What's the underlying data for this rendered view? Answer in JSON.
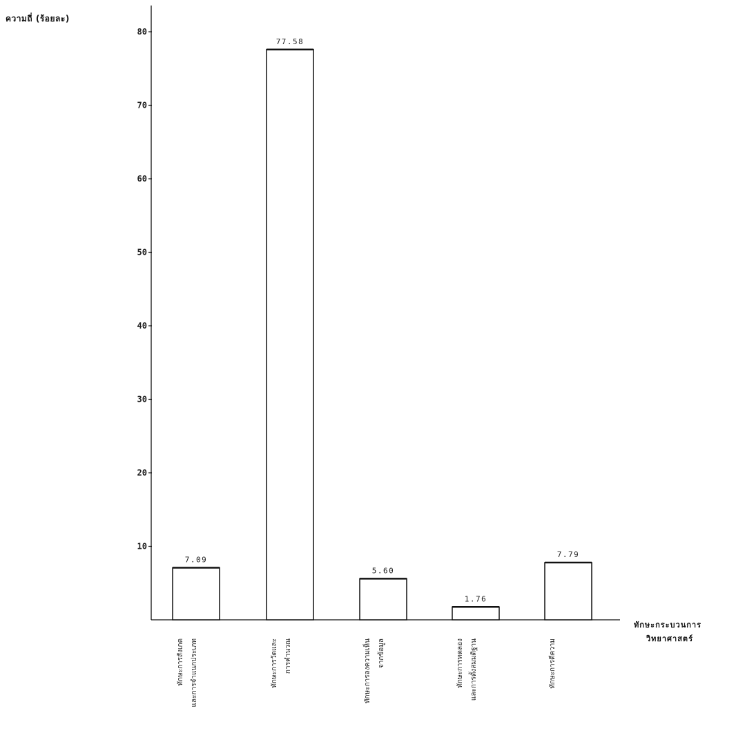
{
  "chart_data": {
    "type": "bar",
    "ylabel": "ความถี่ (ร้อยละ)",
    "xlabel_line1": "ทักษะกระบวนการ",
    "xlabel_line2": "วิทยาศาสตร์",
    "ylim": [
      0,
      80
    ],
    "yticks": [
      10,
      20,
      30,
      40,
      50,
      60,
      70,
      80
    ],
    "categories": [
      [
        "ทักษะการสังเกต",
        "และการจำแนกประเภท"
      ],
      [
        "ทักษะการวัดและ",
        "การคำนวณ"
      ],
      [
        "ทักษะการลงความเห็น",
        "จากข้อมูล"
      ],
      [
        "ทักษะการทดลอง",
        "และการตั้งสมมติฐาน"
      ],
      [
        "ทักษะการตีความ",
        ""
      ]
    ],
    "values": [
      7.09,
      77.58,
      5.6,
      1.76,
      7.79
    ],
    "value_labels": [
      "7.09",
      "77.58",
      "5.60",
      "1.76",
      "7.79"
    ],
    "bar_fill": "#ffffff",
    "bar_stroke": "#111111",
    "grid": false
  }
}
